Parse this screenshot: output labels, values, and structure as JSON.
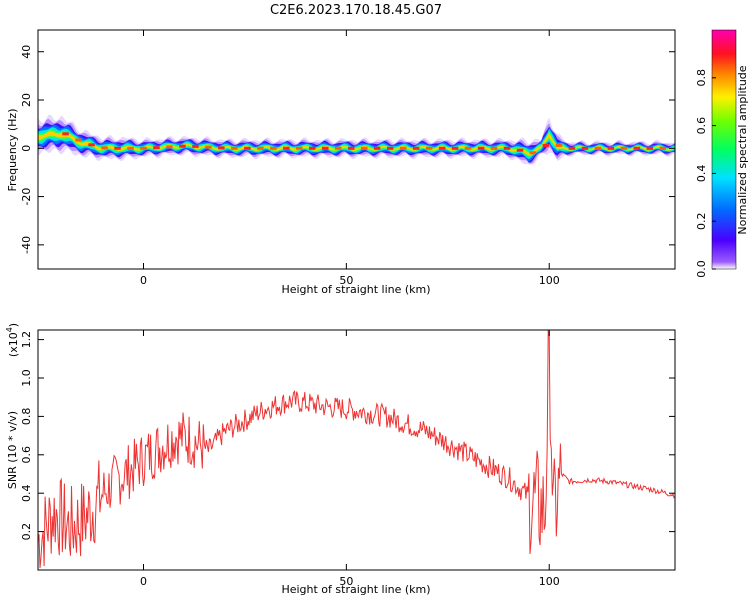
{
  "page_title": "C2E6.2023.170.18.45.G07",
  "chart_data": [
    {
      "type": "heatmap",
      "xlabel": "Height of straight line (km)",
      "ylabel": "Frequency (Hz)",
      "xlim": [
        -26,
        131
      ],
      "ylim": [
        -50,
        49
      ],
      "xticks": [
        0,
        50,
        100
      ],
      "yticks": [
        -40,
        -20,
        0,
        20,
        40
      ],
      "colorbar": {
        "label": "Normalized spectral amplitude",
        "range": [
          0.0,
          1.0
        ],
        "ticks": [
          0.0,
          0.2,
          0.4,
          0.6,
          0.8
        ],
        "tick_labels": [
          "0.0",
          "0.2",
          "0.4",
          "0.6",
          "0.8"
        ],
        "colormap": "rainbow"
      },
      "ridge": {
        "x": [
          -26,
          -20,
          -15,
          -10,
          -5,
          0,
          10,
          20,
          30,
          40,
          50,
          60,
          70,
          80,
          90,
          95,
          98,
          100,
          102,
          105,
          131
        ],
        "center_hz": [
          5,
          6,
          2,
          0,
          0,
          0,
          1,
          0,
          0,
          0,
          0,
          0,
          0,
          0,
          0,
          -2,
          0,
          6,
          0,
          0,
          0
        ],
        "halfwidth_hz": [
          4,
          4,
          3,
          2.5,
          2.5,
          2,
          2,
          2,
          2,
          2,
          2,
          2,
          2,
          2,
          2,
          3,
          2,
          4,
          3,
          1.5,
          1.5
        ]
      }
    },
    {
      "type": "line",
      "xlabel": "Height of straight line (km)",
      "ylabel": "SNR (10 * v/v)",
      "y_multiplier_label": "(x10",
      "y_multiplier_exp": "4",
      "y_multiplier_close": ")",
      "xlim": [
        -26,
        131
      ],
      "ylim": [
        0.0,
        1.25
      ],
      "xticks": [
        0,
        50,
        100
      ],
      "yticks": [
        0.2,
        0.4,
        0.6,
        0.8,
        1.0,
        1.2
      ],
      "ytick_labels": [
        "0.2",
        "0.4",
        "0.6",
        "0.8",
        "1.0",
        "1.2"
      ],
      "color": "#ee3333",
      "series": [
        {
          "x": [
            -26,
            -22,
            -18,
            -14,
            -10,
            -6,
            -2,
            0,
            4,
            8,
            12,
            16,
            20,
            25,
            30,
            36,
            40,
            45,
            50,
            55,
            60,
            65,
            70,
            75,
            80,
            85,
            90,
            95,
            97,
            99,
            100,
            101,
            103,
            105,
            110,
            115,
            120,
            125,
            131
          ],
          "y": [
            0.15,
            0.3,
            0.22,
            0.28,
            0.4,
            0.48,
            0.54,
            0.58,
            0.64,
            0.7,
            0.68,
            0.62,
            0.72,
            0.78,
            0.84,
            0.88,
            0.87,
            0.85,
            0.84,
            0.82,
            0.8,
            0.76,
            0.72,
            0.66,
            0.6,
            0.54,
            0.48,
            0.38,
            0.34,
            0.3,
            1.22,
            0.26,
            0.5,
            0.46,
            0.47,
            0.46,
            0.44,
            0.42,
            0.39
          ]
        }
      ]
    }
  ]
}
